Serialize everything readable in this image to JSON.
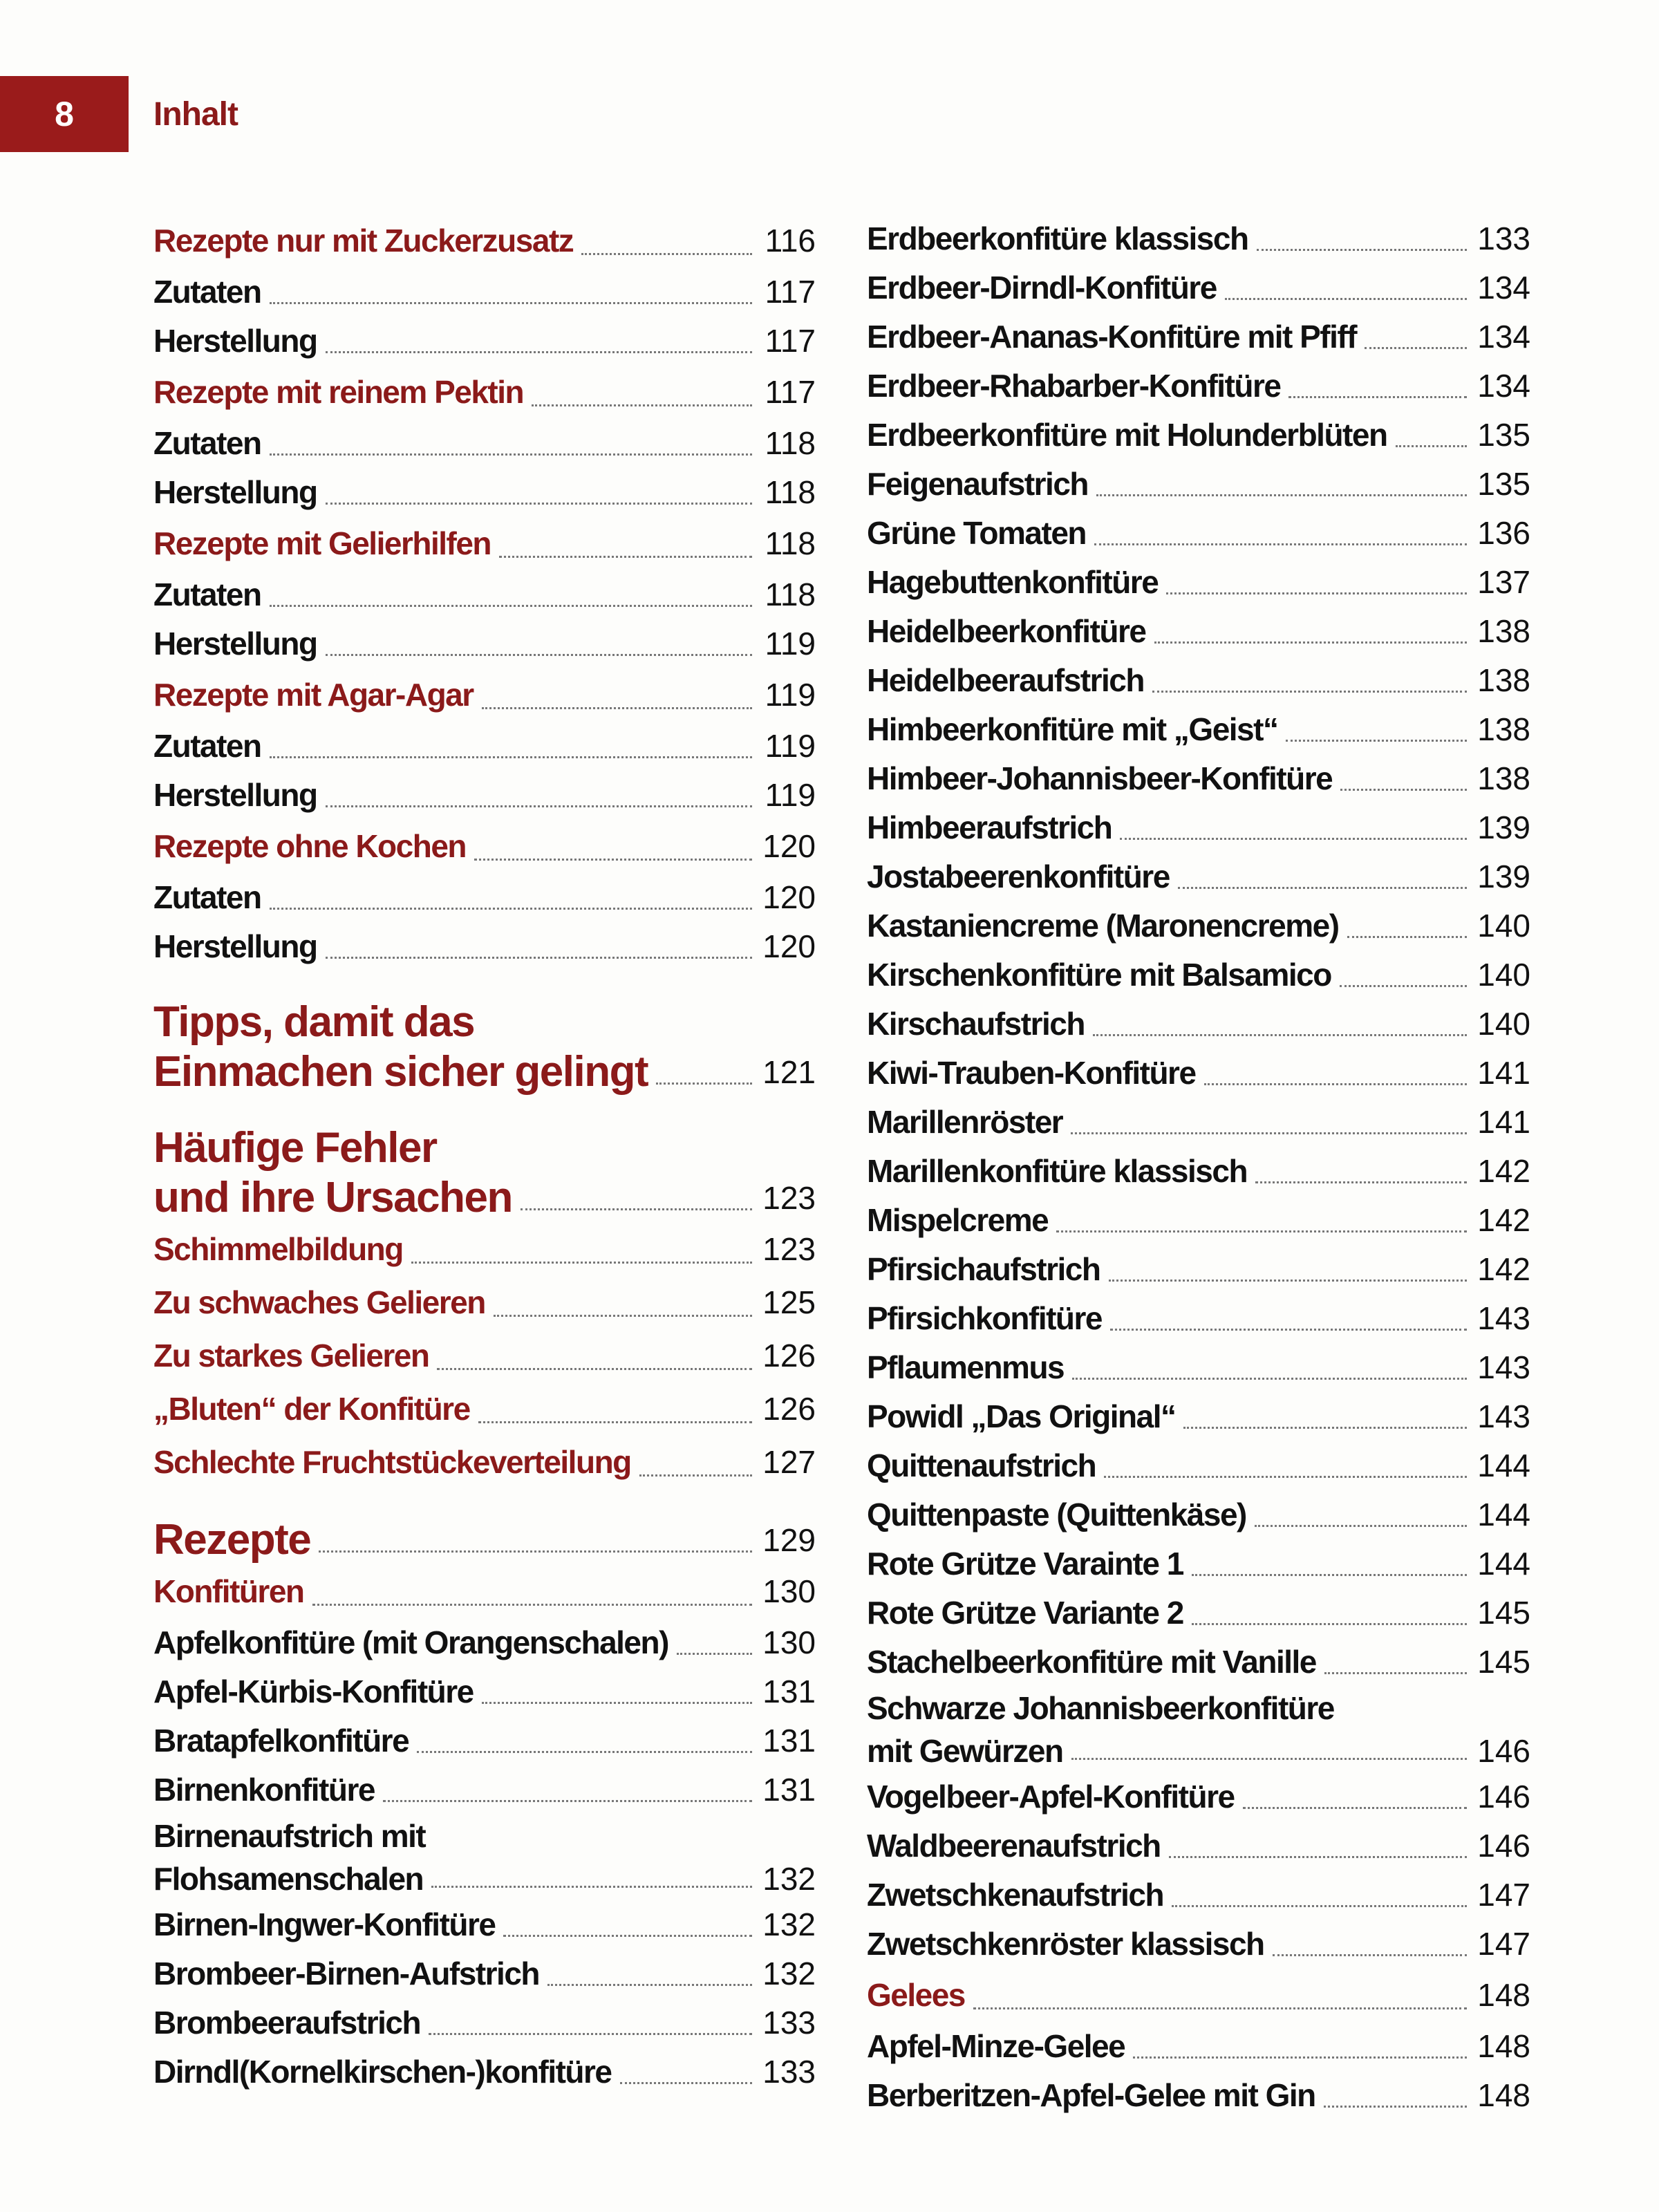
{
  "header": {
    "page_number": "8",
    "running_title": "Inhalt"
  },
  "colors": {
    "accent": "#8b1a1a",
    "page_box": "#9a1b1b",
    "text": "#111111"
  },
  "toc": {
    "left": [
      {
        "style": "section",
        "lines": [
          "Rezepte nur mit Zuckerzusatz"
        ],
        "page": "116"
      },
      {
        "style": "normal",
        "lines": [
          "Zutaten"
        ],
        "page": "117"
      },
      {
        "style": "normal",
        "lines": [
          "Herstellung"
        ],
        "page": "117"
      },
      {
        "style": "section",
        "lines": [
          "Rezepte mit reinem Pektin"
        ],
        "page": "117"
      },
      {
        "style": "normal",
        "lines": [
          "Zutaten"
        ],
        "page": "118"
      },
      {
        "style": "normal",
        "lines": [
          "Herstellung"
        ],
        "page": "118"
      },
      {
        "style": "section",
        "lines": [
          "Rezepte mit Gelierhilfen"
        ],
        "page": "118"
      },
      {
        "style": "normal",
        "lines": [
          "Zutaten"
        ],
        "page": "118"
      },
      {
        "style": "normal",
        "lines": [
          "Herstellung"
        ],
        "page": "119"
      },
      {
        "style": "section",
        "lines": [
          "Rezepte mit Agar-Agar"
        ],
        "page": "119"
      },
      {
        "style": "normal",
        "lines": [
          "Zutaten"
        ],
        "page": "119"
      },
      {
        "style": "normal",
        "lines": [
          "Herstellung"
        ],
        "page": "119"
      },
      {
        "style": "section",
        "lines": [
          "Rezepte ohne Kochen"
        ],
        "page": "120"
      },
      {
        "style": "normal",
        "lines": [
          "Zutaten"
        ],
        "page": "120"
      },
      {
        "style": "normal",
        "lines": [
          "Herstellung"
        ],
        "page": "120"
      },
      {
        "style": "chapter",
        "lines": [
          "Tipps, damit das",
          "Einmachen sicher gelingt"
        ],
        "page": "121"
      },
      {
        "style": "chapter",
        "lines": [
          "Häufige Fehler",
          "und ihre Ursachen"
        ],
        "page": "123"
      },
      {
        "style": "section",
        "lines": [
          "Schimmelbildung"
        ],
        "page": "123"
      },
      {
        "style": "section",
        "lines": [
          "Zu schwaches Gelieren"
        ],
        "page": "125"
      },
      {
        "style": "section",
        "lines": [
          "Zu starkes Gelieren"
        ],
        "page": "126"
      },
      {
        "style": "section",
        "lines": [
          "„Bluten“ der Konfitüre"
        ],
        "page": "126"
      },
      {
        "style": "section",
        "lines": [
          "Schlechte Fruchtstückeverteilung"
        ],
        "page": "127"
      },
      {
        "style": "chapter",
        "lines": [
          "Rezepte"
        ],
        "page": "129"
      },
      {
        "style": "section",
        "lines": [
          "Konfitüren"
        ],
        "page": "130"
      },
      {
        "style": "normal",
        "lines": [
          "Apfelkonfitüre (mit Orangenschalen)"
        ],
        "page": "130"
      },
      {
        "style": "normal",
        "lines": [
          "Apfel-Kürbis-Konfitüre"
        ],
        "page": "131"
      },
      {
        "style": "normal",
        "lines": [
          "Bratapfelkonfitüre"
        ],
        "page": "131"
      },
      {
        "style": "normal",
        "lines": [
          "Birnenkonfitüre"
        ],
        "page": "131"
      },
      {
        "style": "multi",
        "lines": [
          "Birnenaufstrich mit",
          "Flohsamenschalen"
        ],
        "page": "132"
      },
      {
        "style": "normal",
        "lines": [
          "Birnen-Ingwer-Konfitüre"
        ],
        "page": "132"
      },
      {
        "style": "normal",
        "lines": [
          "Brombeer-Birnen-Aufstrich"
        ],
        "page": "132"
      },
      {
        "style": "normal",
        "lines": [
          "Brombeeraufstrich"
        ],
        "page": "133"
      },
      {
        "style": "normal",
        "lines": [
          "Dirndl(Kornelkirschen-)konfitüre"
        ],
        "page": "133"
      }
    ],
    "right": [
      {
        "style": "normal",
        "lines": [
          "Erdbeerkonfitüre klassisch"
        ],
        "page": "133"
      },
      {
        "style": "normal",
        "lines": [
          "Erdbeer-Dirndl-Konfitüre"
        ],
        "page": "134"
      },
      {
        "style": "normal",
        "lines": [
          "Erdbeer-Ananas-Konfitüre mit Pfiff"
        ],
        "page": "134"
      },
      {
        "style": "normal",
        "lines": [
          "Erdbeer-Rhabarber-Konfitüre"
        ],
        "page": "134"
      },
      {
        "style": "normal",
        "lines": [
          "Erdbeerkonfitüre mit Holunderblüten"
        ],
        "page": "135"
      },
      {
        "style": "normal",
        "lines": [
          "Feigenaufstrich"
        ],
        "page": "135"
      },
      {
        "style": "normal",
        "lines": [
          "Grüne Tomaten"
        ],
        "page": "136"
      },
      {
        "style": "normal",
        "lines": [
          "Hagebuttenkonfitüre"
        ],
        "page": "137"
      },
      {
        "style": "normal",
        "lines": [
          "Heidelbeerkonfitüre"
        ],
        "page": "138"
      },
      {
        "style": "normal",
        "lines": [
          "Heidelbeeraufstrich"
        ],
        "page": "138"
      },
      {
        "style": "normal",
        "lines": [
          "Himbeerkonfitüre mit „Geist“"
        ],
        "page": "138"
      },
      {
        "style": "normal",
        "lines": [
          "Himbeer-Johannisbeer-Konfitüre"
        ],
        "page": "138"
      },
      {
        "style": "normal",
        "lines": [
          "Himbeeraufstrich"
        ],
        "page": "139"
      },
      {
        "style": "normal",
        "lines": [
          "Jostabeerenkonfitüre"
        ],
        "page": "139"
      },
      {
        "style": "normal",
        "lines": [
          "Kastaniencreme (Maronencreme)"
        ],
        "page": "140"
      },
      {
        "style": "normal",
        "lines": [
          "Kirschenkonfitüre mit Balsamico"
        ],
        "page": "140"
      },
      {
        "style": "normal",
        "lines": [
          "Kirschaufstrich"
        ],
        "page": "140"
      },
      {
        "style": "normal",
        "lines": [
          "Kiwi-Trauben-Konfitüre"
        ],
        "page": "141"
      },
      {
        "style": "normal",
        "lines": [
          "Marillenröster"
        ],
        "page": "141"
      },
      {
        "style": "normal",
        "lines": [
          "Marillenkonfitüre klassisch"
        ],
        "page": "142"
      },
      {
        "style": "normal",
        "lines": [
          "Mispelcreme"
        ],
        "page": "142"
      },
      {
        "style": "normal",
        "lines": [
          "Pfirsichaufstrich"
        ],
        "page": "142"
      },
      {
        "style": "normal",
        "lines": [
          "Pfirsichkonfitüre"
        ],
        "page": "143"
      },
      {
        "style": "normal",
        "lines": [
          "Pflaumenmus"
        ],
        "page": "143"
      },
      {
        "style": "normal",
        "lines": [
          "Powidl „Das Original“"
        ],
        "page": "143"
      },
      {
        "style": "normal",
        "lines": [
          "Quittenaufstrich"
        ],
        "page": "144"
      },
      {
        "style": "normal",
        "lines": [
          "Quittenpaste (Quittenkäse)"
        ],
        "page": "144"
      },
      {
        "style": "normal",
        "lines": [
          "Rote Grütze Varainte 1"
        ],
        "page": "144"
      },
      {
        "style": "normal",
        "lines": [
          "Rote Grütze Variante 2"
        ],
        "page": "145"
      },
      {
        "style": "normal",
        "lines": [
          "Stachelbeerkonfitüre mit Vanille"
        ],
        "page": "145"
      },
      {
        "style": "multi",
        "lines": [
          "Schwarze Johannisbeerkonfitüre",
          "mit Gewürzen"
        ],
        "page": "146"
      },
      {
        "style": "normal",
        "lines": [
          "Vogelbeer-Apfel-Konfitüre"
        ],
        "page": "146"
      },
      {
        "style": "normal",
        "lines": [
          "Waldbeerenaufstrich"
        ],
        "page": "146"
      },
      {
        "style": "normal",
        "lines": [
          "Zwetschkenaufstrich"
        ],
        "page": "147"
      },
      {
        "style": "normal",
        "lines": [
          "Zwetschkenröster klassisch"
        ],
        "page": "147"
      },
      {
        "style": "section",
        "lines": [
          "Gelees"
        ],
        "page": "148"
      },
      {
        "style": "normal",
        "lines": [
          "Apfel-Minze-Gelee"
        ],
        "page": "148"
      },
      {
        "style": "normal",
        "lines": [
          "Berberitzen-Apfel-Gelee mit Gin"
        ],
        "page": "148"
      }
    ]
  }
}
